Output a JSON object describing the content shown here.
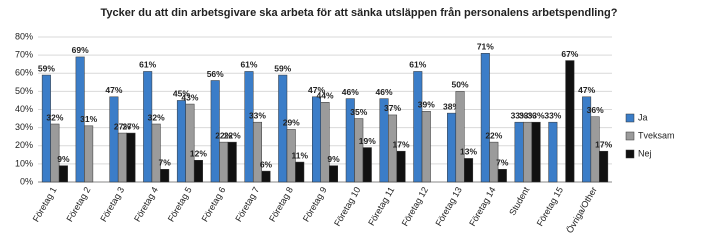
{
  "chart_data": {
    "type": "bar",
    "title": "Tycker du att din arbetsgivare ska arbeta för att sänka utsläppen från personalens arbetspendling?",
    "categories": [
      "Företag 1",
      "Företag 2",
      "Företag 3",
      "Företag 4",
      "Företag 5",
      "Företag 6",
      "Företag 7",
      "Företag 8",
      "Företag 9",
      "Företag 10",
      "Företag 11",
      "Företag 12",
      "Företag 13",
      "Företag 14",
      "Student",
      "Företag 15",
      "Övriga/Other"
    ],
    "series": [
      {
        "name": "Ja",
        "color": "#3b7dc8",
        "values": [
          59,
          69,
          47,
          61,
          45,
          56,
          61,
          59,
          47,
          46,
          46,
          61,
          38,
          71,
          33,
          33,
          47
        ],
        "value_labels": [
          "59%",
          "69%",
          "47%",
          "61%",
          "45%",
          "56%",
          "61%",
          "59%",
          "47%",
          "46%",
          "46%",
          "61%",
          "38%",
          "71%",
          "33%",
          "33%",
          "47%"
        ]
      },
      {
        "name": "Tveksam",
        "color": "#9b9b9b",
        "values": [
          32,
          31,
          27,
          32,
          43,
          22,
          33,
          29,
          44,
          35,
          37,
          39,
          50,
          22,
          33,
          null,
          36
        ],
        "value_labels": [
          "32%",
          "31%",
          "27%",
          "32%",
          "43%",
          "22%",
          "33%",
          "29%",
          "44%",
          "35%",
          "37%",
          "39%",
          "50%",
          "22%",
          "33%",
          null,
          "36%"
        ]
      },
      {
        "name": "Nej",
        "color": "#111111",
        "values": [
          9,
          null,
          27,
          7,
          12,
          22,
          6,
          11,
          9,
          19,
          17,
          null,
          13,
          7,
          33,
          67,
          17
        ],
        "value_labels": [
          "9%",
          null,
          "27%",
          "7%",
          "12%",
          "22%",
          "6%",
          "11%",
          "9%",
          "19%",
          "17%",
          null,
          "13%",
          "7%",
          "33%",
          "67%",
          "17%"
        ]
      }
    ],
    "ylim": [
      0,
      80
    ],
    "yticks": [
      {
        "value": 0,
        "label": "0%"
      },
      {
        "value": 10,
        "label": "10%"
      },
      {
        "value": 20,
        "label": "20%"
      },
      {
        "value": 30,
        "label": "30%"
      },
      {
        "value": 40,
        "label": "40%"
      },
      {
        "value": 50,
        "label": "50%"
      },
      {
        "value": 60,
        "label": "60%"
      },
      {
        "value": 70,
        "label": "70%"
      },
      {
        "value": 80,
        "label": "80%"
      }
    ],
    "grid": true,
    "legend": "right"
  }
}
